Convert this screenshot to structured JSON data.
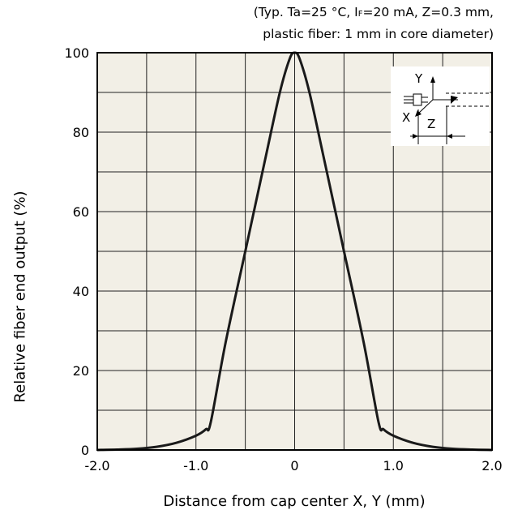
{
  "conditions": {
    "line1": "(Typ. Ta=25 °C, IF=20 mA, Z=0.3 mm,",
    "line2": "plastic fiber: 1 mm in core diameter)"
  },
  "inset": {
    "y_label": "Y",
    "x_label": "X",
    "z_label": "Z"
  },
  "chart_data": {
    "type": "line",
    "title": "",
    "xlabel": "Distance from cap center X, Y (mm)",
    "ylabel": "Relative fiber end output (%)",
    "xlim": [
      -2.0,
      2.0
    ],
    "ylim": [
      0,
      100
    ],
    "xticks": [
      -2.0,
      -1.0,
      0,
      1.0,
      2.0
    ],
    "xtick_labels": [
      "-2.0",
      "-1.0",
      "0",
      "1.0",
      "2.0"
    ],
    "yticks": [
      0,
      20,
      40,
      60,
      80,
      100
    ],
    "ytick_labels": [
      "0",
      "20",
      "40",
      "60",
      "80",
      "100"
    ],
    "grid": true,
    "background": "#f2efe6",
    "line_color": "#1a1a1a",
    "series": [
      {
        "x": [
          -2.0,
          -1.8,
          -1.6,
          -1.4,
          -1.2,
          -1.0,
          -0.9,
          -0.85,
          -0.7,
          -0.5,
          -0.3,
          -0.15,
          -0.05,
          0.0,
          0.05,
          0.15,
          0.3,
          0.5,
          0.7,
          0.85,
          0.9,
          1.0,
          1.2,
          1.4,
          1.6,
          1.8,
          2.0
        ],
        "y": [
          0,
          0.1,
          0.3,
          0.8,
          1.8,
          3.6,
          5.2,
          7.0,
          27,
          50,
          73,
          90,
          98.5,
          100,
          98.5,
          90,
          73,
          50,
          27,
          7.0,
          5.2,
          3.6,
          1.8,
          0.8,
          0.3,
          0.1,
          0
        ]
      }
    ]
  }
}
